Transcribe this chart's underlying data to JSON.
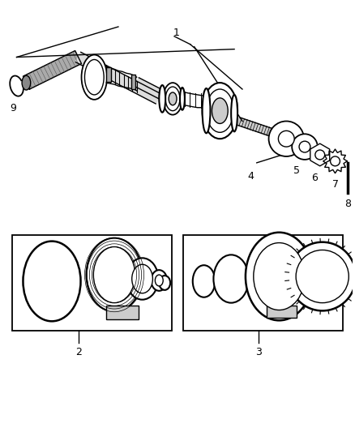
{
  "background_color": "#ffffff",
  "line_color": "#000000",
  "fig_width": 4.38,
  "fig_height": 5.33,
  "dpi": 100
}
